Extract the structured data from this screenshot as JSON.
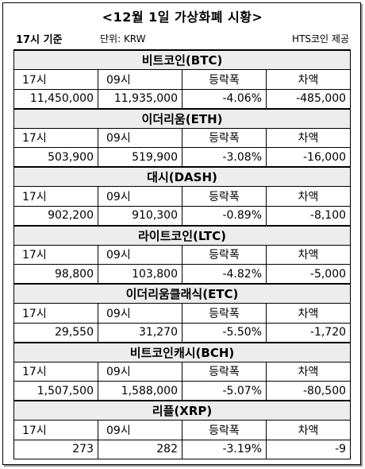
{
  "title": "<12월 1일 가상화폐 시황>",
  "basis": "17시 기준",
  "unit": "단위: KRW",
  "source": "HTS코인 제공",
  "headers": {
    "col1": "17시",
    "col2": "09시",
    "col3": "등락폭",
    "col4": "차액"
  },
  "coins": [
    {
      "name": "비트코인(BTC)",
      "h17": "11,450,000",
      "h09": "11,935,000",
      "change": "-4.06%",
      "diff": "-485,000"
    },
    {
      "name": "이더리움(ETH)",
      "h17": "503,900",
      "h09": "519,900",
      "change": "-3.08%",
      "diff": "-16,000"
    },
    {
      "name": "대시(DASH)",
      "h17": "902,200",
      "h09": "910,300",
      "change": "-0.89%",
      "diff": "-8,100"
    },
    {
      "name": "라이트코인(LTC)",
      "h17": "98,800",
      "h09": "103,800",
      "change": "-4.82%",
      "diff": "-5,000"
    },
    {
      "name": "이더리움클래식(ETC)",
      "h17": "29,550",
      "h09": "31,270",
      "change": "-5.50%",
      "diff": "-1,720"
    },
    {
      "name": "비트코인캐시(BCH)",
      "h17": "1,507,500",
      "h09": "1,588,000",
      "change": "-5.07%",
      "diff": "-80,500"
    },
    {
      "name": "리플(XRP)",
      "h17": "273",
      "h09": "282",
      "change": "-3.19%",
      "diff": "-9"
    }
  ]
}
